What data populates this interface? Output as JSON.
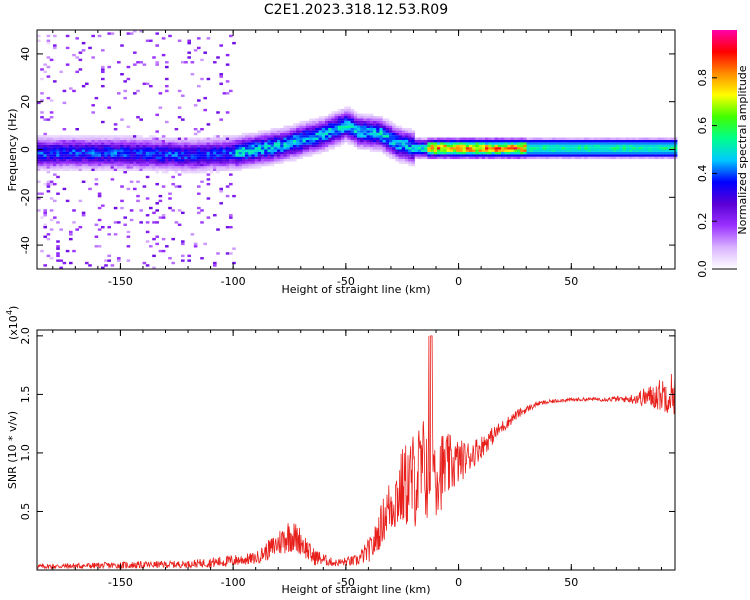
{
  "figure_title": "C2E1.2023.318.12.53.R09",
  "chart_data": [
    {
      "type": "heatmap",
      "title": "C2E1.2023.318.12.53.R09",
      "xlabel": "Height of straight line (km)",
      "ylabel": "Frequency (Hz)",
      "xlim": [
        -187,
        96
      ],
      "ylim": [
        -50,
        50
      ],
      "x_ticks": [
        -150,
        -100,
        -50,
        0,
        50
      ],
      "y_ticks": [
        -40,
        -20,
        0,
        20,
        40
      ],
      "colorbar": {
        "label": "Normalized spectral amplitude",
        "range": [
          0,
          1
        ],
        "ticks": [
          0.0,
          0.2,
          0.4,
          0.6,
          0.8
        ],
        "colormap": [
          "#ffffff",
          "#d9b3ff",
          "#9b30ff",
          "#5a00d6",
          "#0000ff",
          "#00c8ff",
          "#00ff8c",
          "#40ff00",
          "#ffff00",
          "#ff8c00",
          "#ff0000",
          "#ff00aa"
        ]
      },
      "ridge": {
        "description_points": [
          {
            "x": -187,
            "y": -2
          },
          {
            "x": -150,
            "y": -2
          },
          {
            "x": -120,
            "y": -3
          },
          {
            "x": -100,
            "y": -2
          },
          {
            "x": -80,
            "y": 1
          },
          {
            "x": -60,
            "y": 6
          },
          {
            "x": -50,
            "y": 10
          },
          {
            "x": -45,
            "y": 7
          },
          {
            "x": -35,
            "y": 6
          },
          {
            "x": -28,
            "y": 2
          },
          {
            "x": -20,
            "y": 0
          },
          {
            "x": -10,
            "y": 0
          },
          {
            "x": 0,
            "y": 0
          },
          {
            "x": 50,
            "y": 0
          },
          {
            "x": 96,
            "y": 0
          }
        ]
      }
    },
    {
      "type": "line",
      "xlabel": "Height of straight line (km)",
      "ylabel": "SNR (10 * v/v)",
      "y_multiplier": "(x10^4)",
      "xlim": [
        -187,
        96
      ],
      "ylim": [
        0,
        2.05
      ],
      "x_ticks": [
        -150,
        -100,
        -50,
        0,
        50
      ],
      "y_ticks": [
        0.5,
        1.0,
        1.5,
        2.0
      ],
      "color": "#e8201c",
      "series": [
        {
          "baseline_points": [
            [
              -187,
              0.03
            ],
            [
              -150,
              0.04
            ],
            [
              -120,
              0.05
            ],
            [
              -105,
              0.07
            ],
            [
              -90,
              0.1
            ],
            [
              -82,
              0.2
            ],
            [
              -75,
              0.3
            ],
            [
              -70,
              0.25
            ],
            [
              -65,
              0.12
            ],
            [
              -55,
              0.06
            ],
            [
              -45,
              0.08
            ],
            [
              -38,
              0.2
            ],
            [
              -32,
              0.5
            ],
            [
              -25,
              0.7
            ],
            [
              -18,
              0.8
            ],
            [
              -13,
              0.9
            ],
            [
              -8,
              0.85
            ],
            [
              -3,
              0.9
            ],
            [
              3,
              0.95
            ],
            [
              10,
              1.05
            ],
            [
              18,
              1.2
            ],
            [
              26,
              1.33
            ],
            [
              35,
              1.42
            ],
            [
              45,
              1.45
            ],
            [
              60,
              1.46
            ],
            [
              75,
              1.46
            ],
            [
              85,
              1.48
            ],
            [
              96,
              1.52
            ]
          ],
          "noise_points": [
            [
              -187,
              0.02
            ],
            [
              -150,
              0.03
            ],
            [
              -120,
              0.03
            ],
            [
              -105,
              0.05
            ],
            [
              -90,
              0.05
            ],
            [
              -82,
              0.1
            ],
            [
              -75,
              0.15
            ],
            [
              -70,
              0.12
            ],
            [
              -65,
              0.08
            ],
            [
              -55,
              0.03
            ],
            [
              -45,
              0.05
            ],
            [
              -38,
              0.12
            ],
            [
              -32,
              0.22
            ],
            [
              -25,
              0.35
            ],
            [
              -18,
              0.45
            ],
            [
              -13,
              0.5
            ],
            [
              -8,
              0.35
            ],
            [
              -3,
              0.25
            ],
            [
              3,
              0.15
            ],
            [
              10,
              0.1
            ],
            [
              18,
              0.06
            ],
            [
              26,
              0.04
            ],
            [
              35,
              0.02
            ],
            [
              45,
              0.015
            ],
            [
              60,
              0.015
            ],
            [
              75,
              0.03
            ],
            [
              85,
              0.1
            ],
            [
              96,
              0.2
            ]
          ]
        }
      ]
    }
  ]
}
